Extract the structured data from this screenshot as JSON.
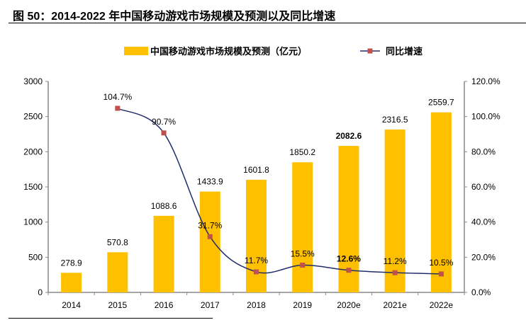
{
  "title": "图 50：2014-2022 年中国移动游戏市场规模及预测以及同比增速",
  "chart_data": {
    "type": "bar+line",
    "categories": [
      "2014",
      "2015",
      "2016",
      "2017",
      "2018",
      "2019",
      "2020e",
      "2021e",
      "2022e"
    ],
    "series": [
      {
        "name": "中国移动游戏市场规模及预测（亿元）",
        "type": "bar",
        "axis": "left",
        "color": "#FFC000",
        "values": [
          278.9,
          570.8,
          1088.6,
          1433.9,
          1601.8,
          1850.2,
          2082.6,
          2316.5,
          2559.7
        ],
        "labels": [
          "278.9",
          "570.8",
          "1088.6",
          "1433.9",
          "1601.8",
          "1850.2",
          "2082.6",
          "2316.5",
          "2559.7"
        ]
      },
      {
        "name": "同比增速",
        "type": "line",
        "axis": "right",
        "color": "#1F2D6B",
        "marker_color": "#C0504D",
        "values": [
          null,
          104.7,
          90.7,
          31.7,
          11.7,
          15.5,
          12.6,
          11.2,
          10.5
        ],
        "labels": [
          "",
          "104.7%",
          "90.7%",
          "31.7%",
          "11.7%",
          "15.5%",
          "12.6%",
          "11.2%",
          "10.5%"
        ]
      }
    ],
    "bold_labels_category": "2020e",
    "y_left": {
      "range": [
        0,
        3000
      ],
      "ticks": [
        "0",
        "500",
        "1000",
        "1500",
        "2000",
        "2500",
        "3000"
      ]
    },
    "y_right": {
      "range": [
        0,
        120
      ],
      "ticks": [
        "0.0%",
        "20.0%",
        "40.0%",
        "60.0%",
        "80.0%",
        "100.0%",
        "120.0%"
      ]
    },
    "grid": false,
    "legend": "top"
  }
}
